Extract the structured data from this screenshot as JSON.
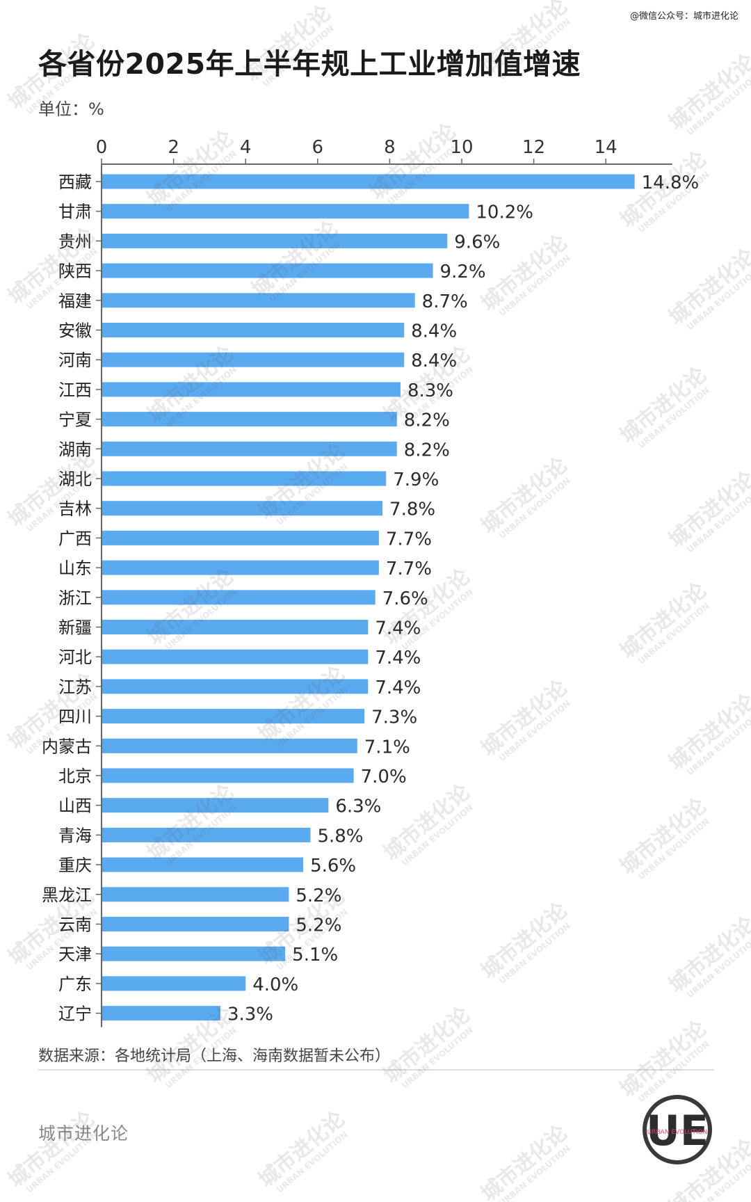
{
  "credit": "@微信公众号：城市进化论",
  "title": "各省份2025年上半年规上工业增加值增速",
  "unit": "单位：%",
  "source": "数据来源：各地统计局（上海、海南数据暂未公布）",
  "brand": "城市进化论",
  "logo": {
    "letters": "UE",
    "text": "URBAN EVOLUTION"
  },
  "watermark": {
    "cn": "城市进化论",
    "en": "URBAN EVOLUTION"
  },
  "colors": {
    "bar": "#5aaaf0",
    "axis": "#666666",
    "text": "#1f1f1f"
  },
  "chart_data": {
    "type": "bar",
    "orientation": "horizontal",
    "xaxis_position": "top",
    "xlim": [
      0,
      16
    ],
    "xticks": [
      0,
      2,
      4,
      6,
      8,
      10,
      12,
      14
    ],
    "value_suffix": "%",
    "categories": [
      "西藏",
      "甘肃",
      "贵州",
      "陕西",
      "福建",
      "安徽",
      "河南",
      "江西",
      "宁夏",
      "湖南",
      "湖北",
      "吉林",
      "广西",
      "山东",
      "浙江",
      "新疆",
      "河北",
      "江苏",
      "四川",
      "内蒙古",
      "北京",
      "山西",
      "青海",
      "重庆",
      "黑龙江",
      "云南",
      "天津",
      "广东",
      "辽宁"
    ],
    "values": [
      14.8,
      10.2,
      9.6,
      9.2,
      8.7,
      8.4,
      8.4,
      8.3,
      8.2,
      8.2,
      7.9,
      7.8,
      7.7,
      7.7,
      7.6,
      7.4,
      7.4,
      7.4,
      7.3,
      7.1,
      7.0,
      6.3,
      5.8,
      5.6,
      5.2,
      5.2,
      5.1,
      4.0,
      3.3
    ],
    "grid": false
  }
}
